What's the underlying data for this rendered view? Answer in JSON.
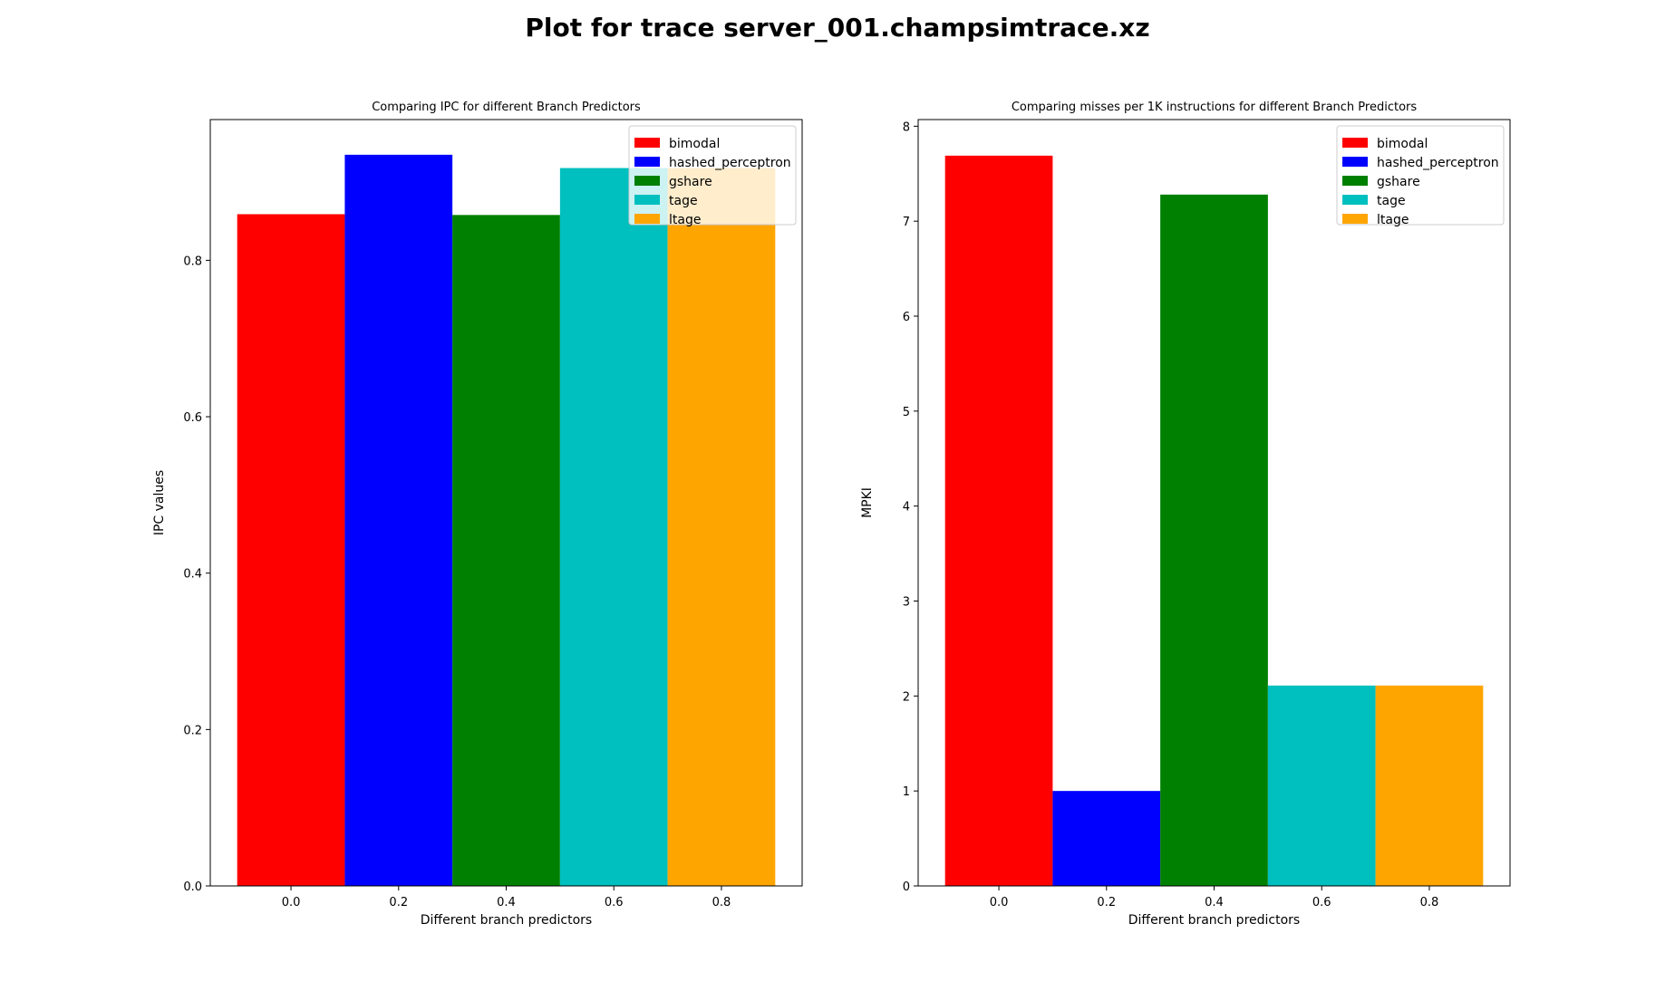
{
  "suptitle": "Plot for trace server_001.champsimtrace.xz",
  "chart_data": [
    {
      "type": "bar",
      "title": "Comparing IPC for different Branch Predictors",
      "xlabel": "Different branch predictors",
      "ylabel": "IPC values",
      "xlim": [
        -0.15,
        0.95
      ],
      "ylim": [
        0,
        0.98
      ],
      "xticks": [
        0.0,
        0.2,
        0.4,
        0.6,
        0.8
      ],
      "xtick_labels": [
        "0.0",
        "0.2",
        "0.4",
        "0.6",
        "0.8"
      ],
      "yticks": [
        0.0,
        0.2,
        0.4,
        0.6,
        0.8
      ],
      "ytick_labels": [
        "0.0",
        "0.2",
        "0.4",
        "0.6",
        "0.8"
      ],
      "bar_width": 0.2,
      "legend_position": "top-right",
      "grid": false,
      "series": [
        {
          "name": "bimodal",
          "x": 0.0,
          "value": 0.859,
          "color": "#ff0000"
        },
        {
          "name": "hashed_perceptron",
          "x": 0.2,
          "value": 0.935,
          "color": "#0000ff"
        },
        {
          "name": "gshare",
          "x": 0.4,
          "value": 0.858,
          "color": "#008000"
        },
        {
          "name": "tage",
          "x": 0.6,
          "value": 0.918,
          "color": "#00bfbf"
        },
        {
          "name": "ltage",
          "x": 0.8,
          "value": 0.918,
          "color": "#ffa500"
        }
      ]
    },
    {
      "type": "bar",
      "title": "Comparing misses per 1K instructions for different Branch Predictors",
      "xlabel": "Different branch predictors",
      "ylabel": "MPKI",
      "xlim": [
        -0.15,
        0.95
      ],
      "ylim": [
        0,
        8.07
      ],
      "xticks": [
        0.0,
        0.2,
        0.4,
        0.6,
        0.8
      ],
      "xtick_labels": [
        "0.0",
        "0.2",
        "0.4",
        "0.6",
        "0.8"
      ],
      "yticks": [
        0,
        1,
        2,
        3,
        4,
        5,
        6,
        7,
        8
      ],
      "ytick_labels": [
        "0",
        "1",
        "2",
        "3",
        "4",
        "5",
        "6",
        "7",
        "8"
      ],
      "bar_width": 0.2,
      "legend_position": "top-right",
      "grid": false,
      "series": [
        {
          "name": "bimodal",
          "x": 0.0,
          "value": 7.69,
          "color": "#ff0000"
        },
        {
          "name": "hashed_perceptron",
          "x": 0.2,
          "value": 1.0,
          "color": "#0000ff"
        },
        {
          "name": "gshare",
          "x": 0.4,
          "value": 7.28,
          "color": "#008000"
        },
        {
          "name": "tage",
          "x": 0.6,
          "value": 2.11,
          "color": "#00bfbf"
        },
        {
          "name": "ltage",
          "x": 0.8,
          "value": 2.11,
          "color": "#ffa500"
        }
      ]
    }
  ]
}
